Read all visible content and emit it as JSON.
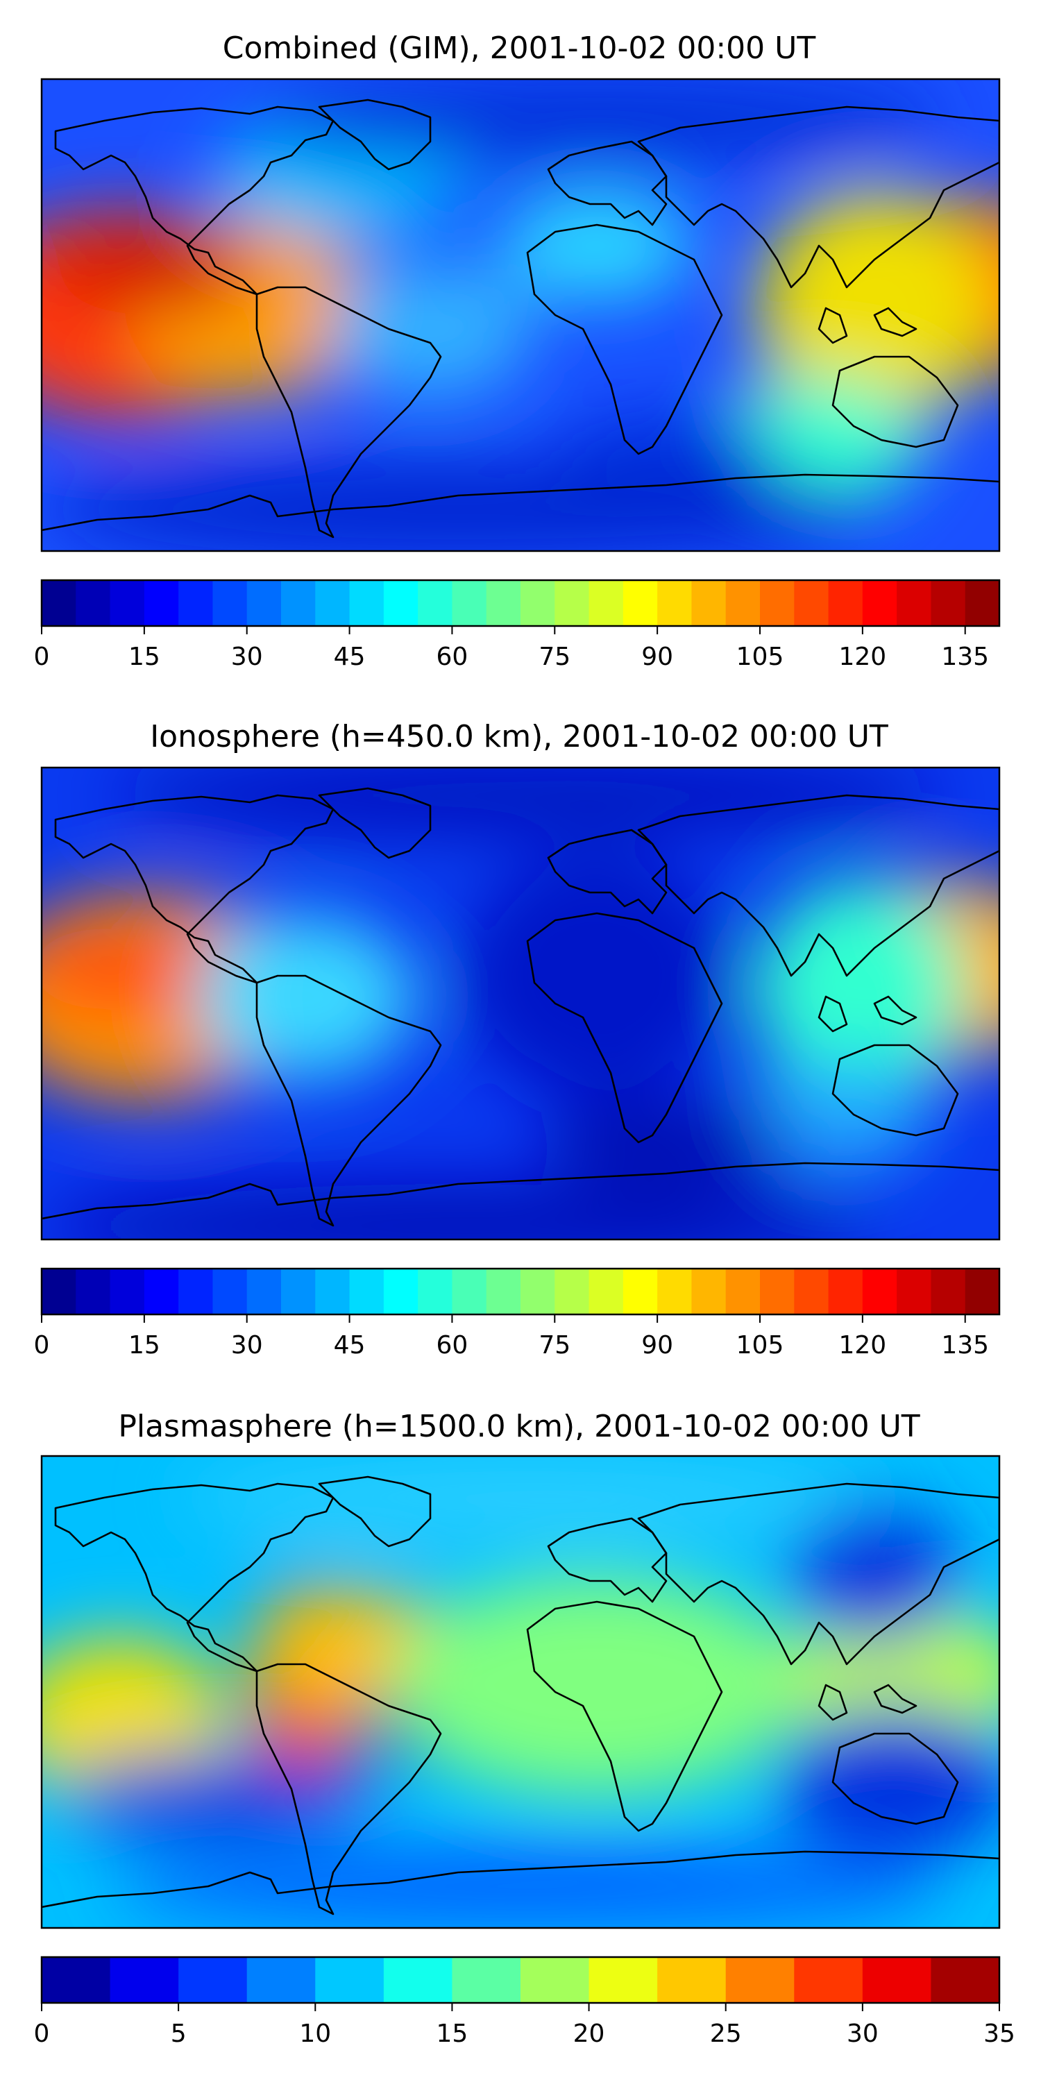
{
  "panels": [
    {
      "title": "Combined (GIM), 2001-10-02 00:00 UT",
      "colorbar": {
        "vmin": 0,
        "vmax": 140,
        "levels": 28,
        "ticks": [
          "0",
          "15",
          "30",
          "45",
          "60",
          "75",
          "90",
          "105",
          "120",
          "135"
        ]
      }
    },
    {
      "title": "Ionosphere  (h=450.0 km), 2001-10-02 00:00 UT",
      "colorbar": {
        "vmin": 0,
        "vmax": 140,
        "levels": 28,
        "ticks": [
          "0",
          "15",
          "30",
          "45",
          "60",
          "75",
          "90",
          "105",
          "120",
          "135"
        ]
      }
    },
    {
      "title": "Plasmasphere (h=1500.0 km), 2001-10-02 00:00 UT",
      "colorbar": {
        "vmin": 0,
        "vmax": 35,
        "levels": 14,
        "ticks": [
          "0",
          "5",
          "10",
          "15",
          "20",
          "25",
          "30",
          "35"
        ]
      }
    }
  ],
  "colormap": "jet"
}
